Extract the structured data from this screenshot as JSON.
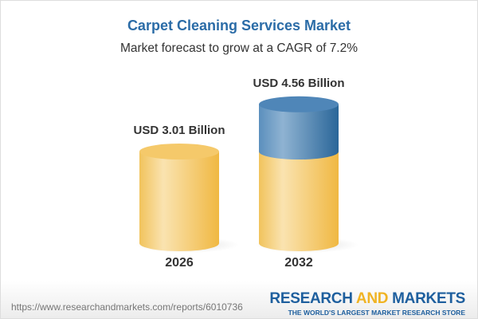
{
  "title": "Carpet Cleaning Services Market",
  "subtitle": "Market forecast to grow at a CAGR of 7.2%",
  "chart_data": {
    "type": "bar",
    "style": "3d-cylinder",
    "categories": [
      "2026",
      "2032"
    ],
    "values": [
      3.01,
      4.56
    ],
    "data_labels": [
      "USD 3.01 Billion",
      "USD 4.56 Billion"
    ],
    "colors": {
      "base": "#f3c35a",
      "growth": "#3f7fb3"
    }
  },
  "footer": {
    "url": "https://www.researchandmarkets.com/reports/6010736",
    "logo": {
      "part1": "RESEARCH ",
      "part2": "AND",
      "part3": " MARKETS",
      "tagline": "THE WORLD'S LARGEST MARKET RESEARCH STORE"
    }
  }
}
